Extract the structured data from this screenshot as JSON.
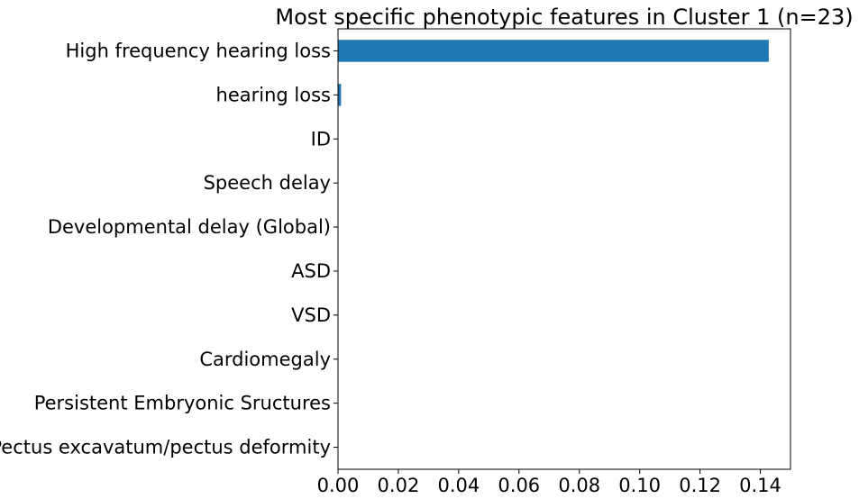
{
  "chart_data": {
    "type": "bar",
    "orientation": "horizontal",
    "title": "Most specific phenotypic features in Cluster 1 (n=23)",
    "xlabel": "",
    "ylabel": "",
    "categories": [
      "High frequency hearing loss",
      "hearing loss",
      "ID",
      "Speech delay",
      "Developmental delay (Global)",
      "ASD",
      "VSD",
      "Cardiomegaly",
      "Persistent Embryonic Sructures",
      "Pectus excavatum/pectus deformity"
    ],
    "values": [
      0.1428,
      0.001,
      0.0001,
      0.0001,
      0.0001,
      0.0001,
      0.0001,
      0.0001,
      0.0001,
      0.0001
    ],
    "xlim": [
      0,
      0.15
    ],
    "xticks": [
      "0.00",
      "0.02",
      "0.04",
      "0.06",
      "0.08",
      "0.10",
      "0.12",
      "0.14"
    ],
    "grid": false,
    "legend": false,
    "bar_color": "#1f77b4"
  }
}
